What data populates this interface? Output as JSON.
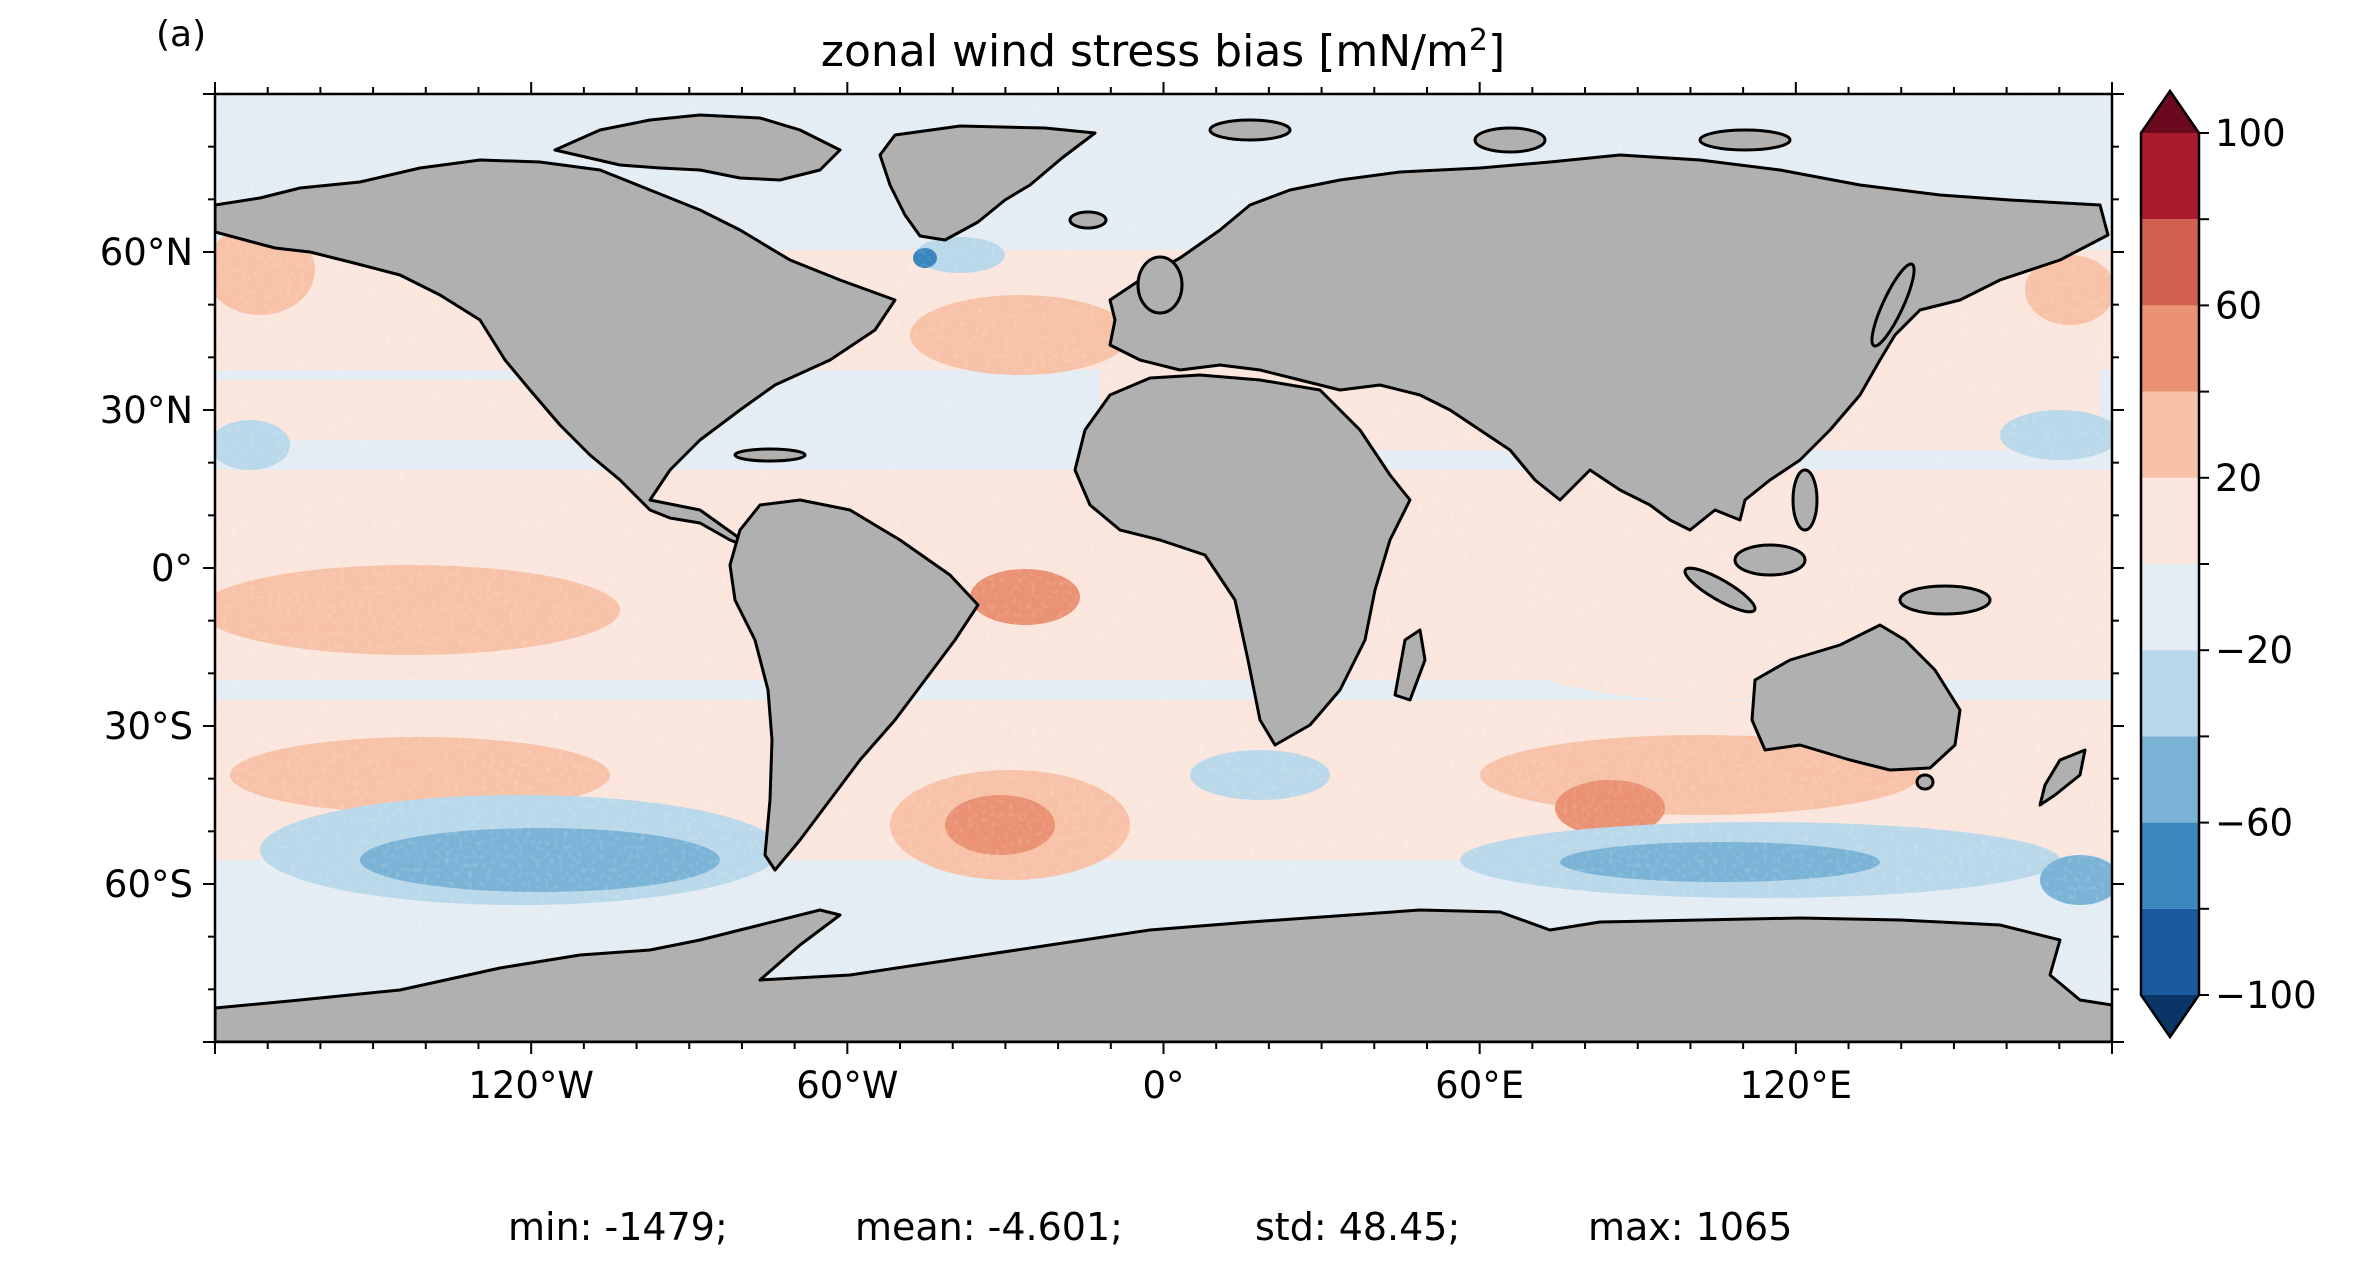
{
  "panel_label": "(a)",
  "title_main": "zonal wind stress bias [mN/m",
  "title_sup": "2",
  "title_end": "]",
  "map": {
    "lon_ticks": [
      {
        "label": "120°W",
        "lon": -120
      },
      {
        "label": "60°W",
        "lon": -60
      },
      {
        "label": "0°",
        "lon": 0
      },
      {
        "label": "60°E",
        "lon": 60
      },
      {
        "label": "120°E",
        "lon": 120
      }
    ],
    "lat_ticks": [
      {
        "label": "60°N",
        "lat": 60
      },
      {
        "label": "30°N",
        "lat": 30
      },
      {
        "label": "0°",
        "lat": 0
      },
      {
        "label": "30°S",
        "lat": -30
      },
      {
        "label": "60°S",
        "lat": -60
      }
    ],
    "land_color": "#b0b0b0",
    "coast_color": "#000000"
  },
  "colorbar": {
    "levels": [
      -100,
      -80,
      -60,
      -40,
      -20,
      0,
      20,
      40,
      60,
      80,
      100
    ],
    "tick_labels": [
      {
        "label": "100",
        "value": 100
      },
      {
        "label": "60",
        "value": 60
      },
      {
        "label": "20",
        "value": 20
      },
      {
        "label": "−20",
        "value": -20
      },
      {
        "label": "−60",
        "value": -60
      },
      {
        "label": "−100",
        "value": -100
      }
    ],
    "colors": [
      "#1a5a9e",
      "#3b86bf",
      "#7bb3d6",
      "#b9d8ea",
      "#e4edf4",
      "#fbe6dd",
      "#f7c2a7",
      "#ea9273",
      "#d0604f",
      "#ac1b2d"
    ],
    "under_color": "#0b3566",
    "over_color": "#6b0a1f"
  },
  "stats": {
    "min": "min: -1479;",
    "mean": "mean: -4.601;",
    "std": "std: 48.45;",
    "max": "max: 1065"
  }
}
